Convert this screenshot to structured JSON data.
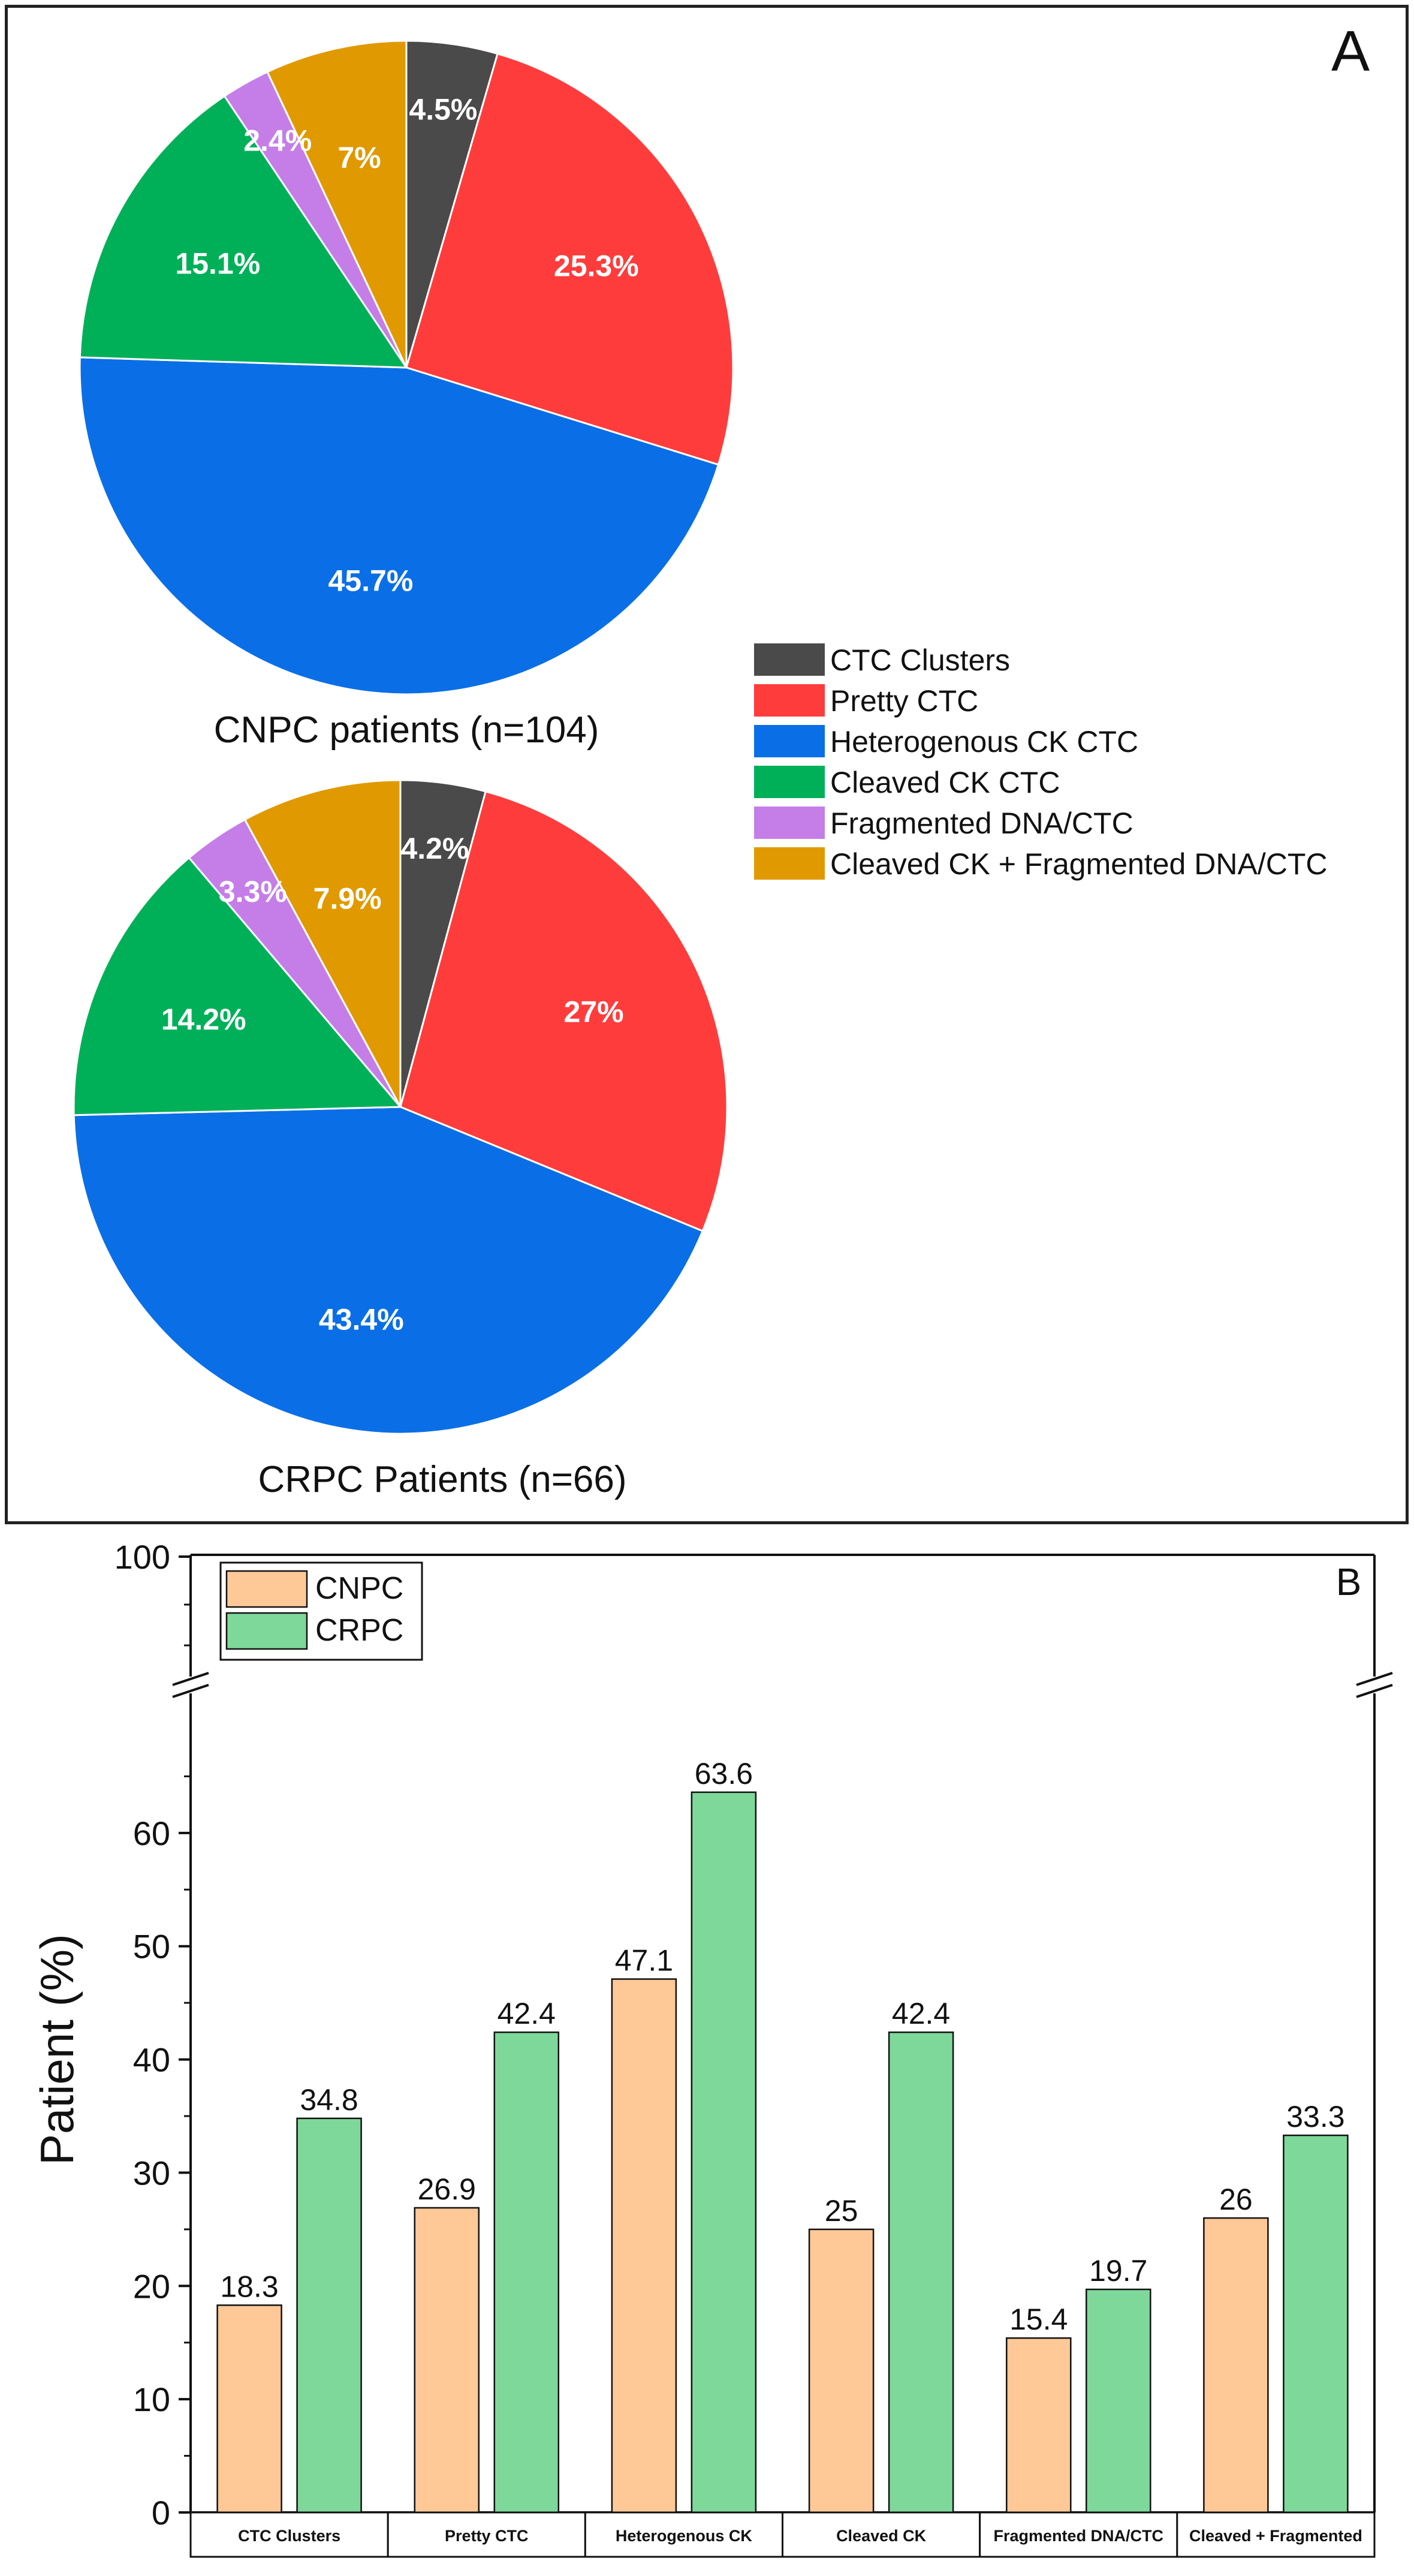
{
  "panel_a": {
    "letter": "A",
    "legend": [
      {
        "label": "CTC Clusters",
        "color": "#4a4a4a"
      },
      {
        "label": "Pretty CTC",
        "color": "#ff3c3c"
      },
      {
        "label": "Heterogenous CK CTC",
        "color": "#0a6fe6"
      },
      {
        "label": "Cleaved CK CTC",
        "color": "#00b058"
      },
      {
        "label": "Fragmented DNA/CTC",
        "color": "#c57ee8"
      },
      {
        "label": "Cleaved CK + Fragmented DNA/CTC",
        "color": "#e09a00"
      }
    ]
  },
  "panel_b": {
    "letter": "B",
    "ylabel": "Patient (%)",
    "top_tick": "100",
    "legend": [
      {
        "label": "CNPC",
        "color": "#ffc896"
      },
      {
        "label": "CRPC",
        "color": "#7dd89a"
      }
    ]
  },
  "chart_data": [
    {
      "type": "pie",
      "title": "CNPC patients (n=104)",
      "labels": [
        "CTC Clusters",
        "Pretty CTC",
        "Heterogenous CK CTC",
        "Cleaved CK CTC",
        "Fragmented DNA/CTC",
        "Cleaved CK + Fragmented DNA/CTC"
      ],
      "values": [
        4.5,
        25.3,
        45.7,
        15.1,
        2.4,
        7.0
      ],
      "value_labels": [
        "4.5%",
        "25.3%",
        "45.7%",
        "15.1%",
        "2.4%",
        "7%"
      ],
      "colors": [
        "#4a4a4a",
        "#ff3c3c",
        "#0a6fe6",
        "#00b058",
        "#c57ee8",
        "#e09a00"
      ]
    },
    {
      "type": "pie",
      "title": "CRPC Patients (n=66)",
      "labels": [
        "CTC Clusters",
        "Pretty CTC",
        "Heterogenous CK CTC",
        "Cleaved CK CTC",
        "Fragmented DNA/CTC",
        "Cleaved CK + Fragmented DNA/CTC"
      ],
      "values": [
        4.2,
        27.0,
        43.4,
        14.2,
        3.3,
        7.9
      ],
      "value_labels": [
        "4.2%",
        "27%",
        "43.4%",
        "14.2%",
        "3.3%",
        "7.9%"
      ],
      "colors": [
        "#4a4a4a",
        "#ff3c3c",
        "#0a6fe6",
        "#00b058",
        "#c57ee8",
        "#e09a00"
      ]
    },
    {
      "type": "bar",
      "categories": [
        "CTC Clusters",
        "Pretty CTC",
        "Heterogenous CK",
        "Cleaved CK",
        "Fragmented DNA/CTC",
        "Cleaved + Fragmented"
      ],
      "series": [
        {
          "name": "CNPC",
          "values": [
            18.3,
            26.9,
            47.1,
            25,
            15.4,
            26
          ],
          "labels": [
            "18.3",
            "26.9",
            "47.1",
            "25",
            "15.4",
            "26"
          ]
        },
        {
          "name": "CRPC",
          "values": [
            34.8,
            42.4,
            63.6,
            42.4,
            19.7,
            33.3
          ],
          "labels": [
            "34.8",
            "42.4",
            "63.6",
            "42.4",
            "19.7",
            "33.3"
          ]
        }
      ],
      "xlabel": "",
      "ylabel": "Patient (%)",
      "ylim": [
        0,
        70
      ],
      "yticks": [
        0,
        10,
        20,
        30,
        40,
        50,
        60
      ],
      "axis_break": {
        "from": 70,
        "to": 100
      }
    }
  ]
}
